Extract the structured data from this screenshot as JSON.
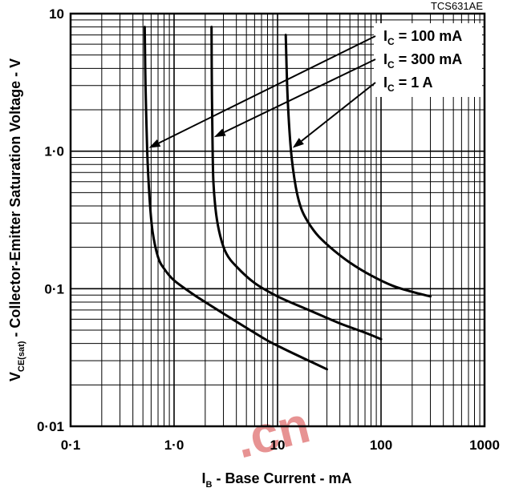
{
  "chart_data": {
    "type": "line",
    "figure_id": "TCS631AE",
    "xlabel": {
      "main": "I",
      "sub": "B",
      "rest": " - Base Current - mA"
    },
    "ylabel": {
      "main": "V",
      "sub": "CE(sat)",
      "rest": " - Collector-Emitter Saturation Voltage - V"
    },
    "x_scale": "log",
    "y_scale": "log",
    "xlim": [
      0.1,
      1000
    ],
    "ylim": [
      0.01,
      10
    ],
    "x_ticks": [
      "0·1",
      "1·0",
      "10",
      "100",
      "1000"
    ],
    "y_ticks": [
      "0·01",
      "0·1",
      "1·0",
      "10"
    ],
    "grid": true,
    "legend_position": "top-right",
    "series": [
      {
        "name": {
          "main": "I",
          "sub": "C",
          "rest": " = 100 mA"
        },
        "x": [
          0.52,
          0.53,
          0.55,
          0.58,
          0.62,
          0.7,
          0.8,
          1.0,
          1.5,
          2.0,
          3.0,
          5.0,
          8.0,
          12.0,
          20.0,
          30.0
        ],
        "y": [
          8.0,
          3.0,
          1.0,
          0.45,
          0.26,
          0.17,
          0.14,
          0.115,
          0.092,
          0.08,
          0.066,
          0.052,
          0.042,
          0.036,
          0.03,
          0.026
        ]
      },
      {
        "name": {
          "main": "I",
          "sub": "C",
          "rest": " = 300 mA"
        },
        "x": [
          2.3,
          2.32,
          2.35,
          2.4,
          2.55,
          2.8,
          3.2,
          4.0,
          6.0,
          10.0,
          20.0,
          40.0,
          70.0,
          100.0
        ],
        "y": [
          8.0,
          3.0,
          1.2,
          0.6,
          0.35,
          0.24,
          0.18,
          0.145,
          0.11,
          0.088,
          0.07,
          0.056,
          0.048,
          0.043
        ]
      },
      {
        "name": {
          "main": "I",
          "sub": "C",
          "rest": " = 1 A"
        },
        "x": [
          12.0,
          12.5,
          13.5,
          15.0,
          17.0,
          20.0,
          25.0,
          35.0,
          50.0,
          80.0,
          130.0,
          200.0,
          300.0
        ],
        "y": [
          7.0,
          2.5,
          1.0,
          0.55,
          0.38,
          0.3,
          0.24,
          0.19,
          0.155,
          0.125,
          0.105,
          0.095,
          0.088
        ]
      }
    ]
  },
  "watermark": ".cn"
}
